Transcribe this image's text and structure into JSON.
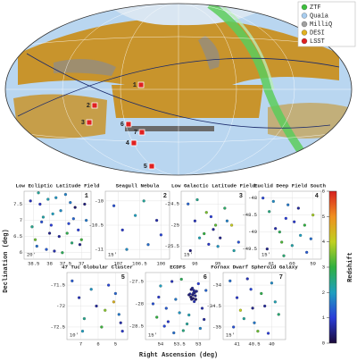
{
  "figure": {
    "xlabel": "Right Ascension (deg)",
    "ylabel": "Declination (deg)",
    "colorbar": {
      "label": "Redshift",
      "lim": [
        0,
        6
      ],
      "ticks": [
        0,
        1,
        2,
        3,
        4,
        5,
        6
      ],
      "colors": [
        "#1b0a3a",
        "#2a3dd8",
        "#1f9fbf",
        "#30b040",
        "#c0d020",
        "#f09020",
        "#d71f1f"
      ]
    }
  },
  "chart_data": [
    {
      "type": "skymap",
      "legend": [
        {
          "name": "ZTF",
          "color": "#3cc03c"
        },
        {
          "name": "Quaia",
          "color": "#a8cdef"
        },
        {
          "name": "MilliQ",
          "color": "#a0a0a0"
        },
        {
          "name": "DESI",
          "color": "#e0b020"
        },
        {
          "name": "LSST",
          "color": "#e02020"
        }
      ]
    },
    {
      "type": "scatter",
      "title": "Low Ecliptic Latitude Field",
      "number": "1",
      "scale_label": "20'",
      "xlim": [
        38.8,
        36.7
      ],
      "ylim": [
        5.8,
        7.9
      ],
      "xticks": [
        38.5,
        38,
        37.5,
        37
      ],
      "yticks": [
        6,
        6.5,
        7,
        7.5
      ],
      "x": [
        38.6,
        38.4,
        38.2,
        38.0,
        37.8,
        37.6,
        37.4,
        37.2,
        37.0,
        36.85,
        38.55,
        38.3,
        38.1,
        37.9,
        37.7,
        37.5,
        37.3,
        37.1,
        36.9,
        38.45,
        38.25,
        38.05,
        37.85,
        37.65,
        37.45,
        37.25,
        37.05,
        38.35,
        37.95,
        37.35
      ],
      "y": [
        7.6,
        6.2,
        7.1,
        6.6,
        7.7,
        6.0,
        6.9,
        7.4,
        6.4,
        7.0,
        6.8,
        7.5,
        6.1,
        7.2,
        6.5,
        7.8,
        6.3,
        6.7,
        7.5,
        6.4,
        6.95,
        7.65,
        6.05,
        7.3,
        6.6,
        7.05,
        6.25,
        7.85,
        6.85,
        7.55
      ],
      "z": [
        0.8,
        1.5,
        2.2,
        0.5,
        1.9,
        2.8,
        1.1,
        0.3,
        3.1,
        1.6,
        2.4,
        0.9,
        1.3,
        2.0,
        0.6,
        1.7,
        2.6,
        1.0,
        0.4,
        3.4,
        1.2,
        2.1,
        0.7,
        1.8,
        2.9,
        1.4,
        0.5,
        2.3,
        1.0,
        1.6
      ]
    },
    {
      "type": "scatter",
      "title": "Seagull Nebula",
      "number": "2",
      "scale_label": "15'",
      "xlim": [
        107.3,
        105.8
      ],
      "ylim": [
        -11.2,
        -9.8
      ],
      "xticks": [
        107,
        106.5,
        106
      ],
      "yticks": [
        -11,
        -10.5,
        -10
      ],
      "x": [
        107.1,
        106.9,
        106.6,
        106.3,
        106.1,
        106.8,
        106.4,
        106.0
      ],
      "y": [
        -10.1,
        -10.6,
        -10.3,
        -10.9,
        -10.4,
        -11.0,
        -10.0,
        -10.7
      ],
      "z": [
        1.2,
        0.9,
        2.0,
        1.5,
        0.7,
        1.8,
        2.3,
        1.1
      ]
    },
    {
      "type": "scatter",
      "title": "Low Galactic Latitude Field",
      "number": "3",
      "scale_label": "15'",
      "xlim": [
        96.6,
        93.8
      ],
      "ylim": [
        -25.8,
        -24.2
      ],
      "xticks": [
        96,
        95
      ],
      "yticks": [
        -25.5,
        -25,
        -24.5
      ],
      "x": [
        96.3,
        96.0,
        95.8,
        95.5,
        95.2,
        95.0,
        94.7,
        94.4,
        94.1,
        96.2,
        95.9,
        95.6,
        95.3,
        94.9,
        94.6,
        94.3,
        95.1,
        95.4
      ],
      "y": [
        -24.5,
        -24.9,
        -25.3,
        -24.7,
        -25.1,
        -25.5,
        -24.6,
        -25.0,
        -25.4,
        -25.6,
        -24.4,
        -25.2,
        -24.8,
        -25.3,
        -24.9,
        -25.6,
        -25.0,
        -25.45
      ],
      "z": [
        1.4,
        0.8,
        2.1,
        3.5,
        0.6,
        1.9,
        2.7,
        4.1,
        1.2,
        0.4,
        2.4,
        3.0,
        1.0,
        0.5,
        1.7,
        2.2,
        3.3,
        0.9
      ]
    },
    {
      "type": "scatter",
      "title": "Euclid Deep Field South",
      "number": "4",
      "scale_label": "15'",
      "xlim": [
        61.6,
        58.6
      ],
      "ylim": [
        -49.8,
        -47.8
      ],
      "xticks": [
        61,
        60,
        59
      ],
      "yticks": [
        -49.5,
        -49,
        -48.5,
        -48
      ],
      "x": [
        61.4,
        61.1,
        60.8,
        60.5,
        60.2,
        59.9,
        59.6,
        59.3,
        59.0,
        61.2,
        60.9,
        60.6,
        60.3,
        60.0,
        59.7,
        59.4,
        59.1,
        60.4
      ],
      "y": [
        -48.0,
        -48.4,
        -48.9,
        -49.3,
        -48.2,
        -48.7,
        -49.1,
        -49.6,
        -48.5,
        -49.5,
        -48.1,
        -49.0,
        -48.6,
        -49.4,
        -48.3,
        -48.8,
        -49.2,
        -49.7
      ],
      "z": [
        1.1,
        2.5,
        0.7,
        3.2,
        1.6,
        0.9,
        2.0,
        1.3,
        3.8,
        0.5,
        1.8,
        2.8,
        1.0,
        2.2,
        0.6,
        3.0,
        1.5,
        2.6
      ]
    },
    {
      "type": "scatter",
      "title": "47 Tuc Globular Cluster",
      "number": "5",
      "scale_label": "10'",
      "xlim": [
        7.8,
        4.3
      ],
      "ylim": [
        -72.8,
        -71.2
      ],
      "xticks": [
        7,
        6,
        5
      ],
      "yticks": [
        -72.5,
        -72,
        -71.5
      ],
      "x": [
        7.5,
        7.1,
        6.8,
        6.4,
        6.1,
        5.8,
        5.4,
        5.1,
        4.8,
        4.6,
        6.9,
        5.6,
        5.0,
        4.7
      ],
      "y": [
        -71.4,
        -71.8,
        -72.3,
        -71.6,
        -72.0,
        -72.5,
        -71.5,
        -71.9,
        -72.2,
        -72.6,
        -72.6,
        -72.1,
        -71.7,
        -72.4
      ],
      "z": [
        1.3,
        0.8,
        2.4,
        1.9,
        0.6,
        3.1,
        1.1,
        4.5,
        1.6,
        0.9,
        2.0,
        3.6,
        1.4,
        0.7
      ]
    },
    {
      "type": "scatter",
      "title": "ECDFS",
      "number": "6",
      "scale_label": "15'",
      "xlim": [
        54.4,
        52.7
      ],
      "ylim": [
        -28.8,
        -27.3
      ],
      "xticks": [
        54,
        53.5,
        53
      ],
      "yticks": [
        -28.5,
        -28,
        -27.5
      ],
      "x": [
        53.15,
        53.1,
        53.2,
        53.12,
        53.18,
        53.08,
        53.22,
        53.14,
        53.05,
        53.25,
        53.16,
        53.11,
        53.19,
        53.13,
        53.07,
        54.2,
        54.0,
        53.8,
        53.6,
        53.4,
        52.9,
        52.8,
        54.1,
        53.9,
        53.7,
        53.5,
        53.3,
        53.0,
        52.85,
        53.65,
        53.45,
        54.05,
        53.85,
        53.25,
        52.95
      ],
      "y": [
        -27.8,
        -27.75,
        -27.85,
        -27.7,
        -27.9,
        -27.82,
        -27.78,
        -27.88,
        -27.72,
        -27.8,
        -27.65,
        -27.95,
        -27.68,
        -27.76,
        -27.9,
        -28.0,
        -27.6,
        -28.4,
        -27.9,
        -28.6,
        -28.1,
        -27.7,
        -28.3,
        -28.5,
        -27.5,
        -28.2,
        -28.45,
        -27.55,
        -28.35,
        -28.65,
        -27.45,
        -27.85,
        -28.1,
        -28.25,
        -28.55
      ],
      "z": [
        0.4,
        0.5,
        0.3,
        0.6,
        0.4,
        0.5,
        0.7,
        0.3,
        0.5,
        0.4,
        0.6,
        0.8,
        0.4,
        0.5,
        0.3,
        1.2,
        2.0,
        0.9,
        1.6,
        2.5,
        0.7,
        1.4,
        3.0,
        1.1,
        0.8,
        1.9,
        2.3,
        1.0,
        0.6,
        1.5,
        2.8,
        0.9,
        1.3,
        2.1,
        1.7
      ]
    },
    {
      "type": "scatter",
      "title": "Fornax Dwarf Spheroid Galaxy",
      "number": "7",
      "scale_label": "15'",
      "xlim": [
        41.4,
        39.6
      ],
      "ylim": [
        -35.3,
        -33.7
      ],
      "xticks": [
        41,
        40.5,
        40
      ],
      "yticks": [
        -35,
        -34.5,
        -34
      ],
      "x": [
        41.2,
        41.0,
        40.8,
        40.6,
        40.4,
        40.2,
        40.0,
        39.8,
        41.1,
        40.9,
        40.7,
        40.5,
        40.3,
        40.1,
        39.9,
        40.55
      ],
      "y": [
        -33.9,
        -34.3,
        -34.8,
        -34.1,
        -35.1,
        -34.5,
        -33.95,
        -34.7,
        -35.0,
        -34.6,
        -33.85,
        -34.9,
        -34.2,
        -35.15,
        -34.4,
        -34.55
      ],
      "z": [
        1.5,
        0.9,
        2.3,
        1.1,
        3.4,
        0.6,
        1.8,
        2.6,
        1.2,
        4.0,
        0.8,
        1.6,
        2.9,
        1.0,
        2.1,
        0.5
      ]
    }
  ]
}
